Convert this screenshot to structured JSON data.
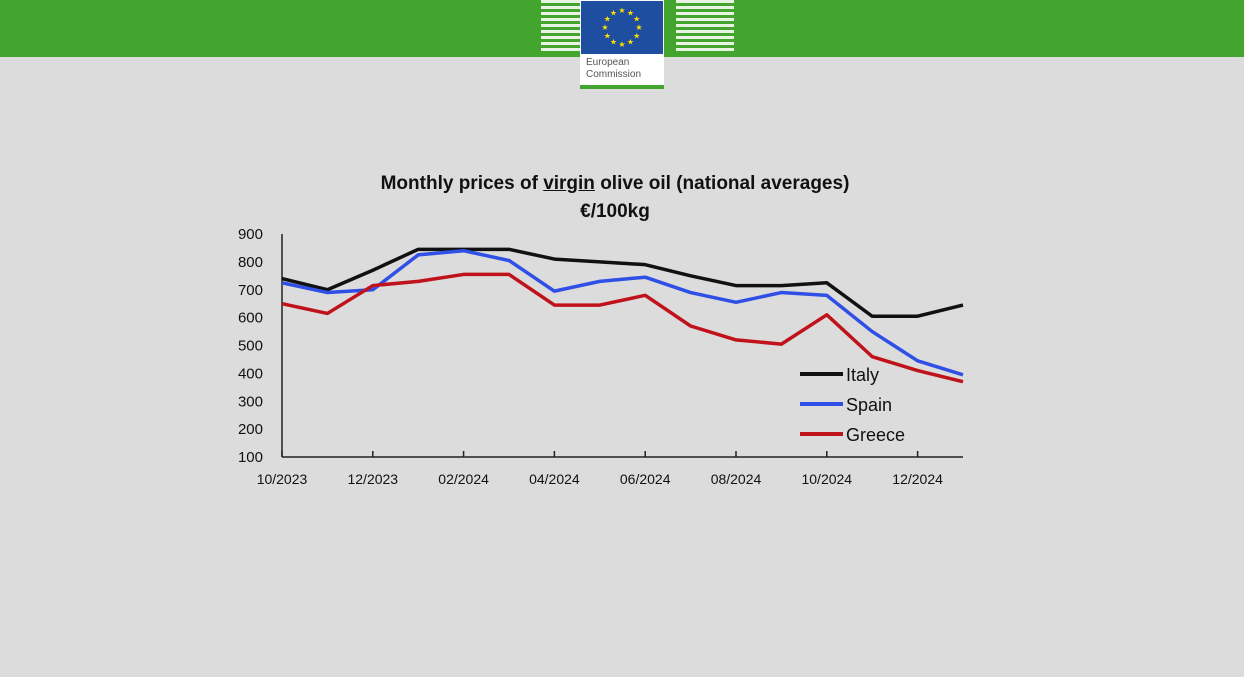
{
  "header": {
    "logo_text": [
      "European",
      "Commission"
    ]
  },
  "chart_data": {
    "type": "line",
    "title_parts": [
      "Monthly prices of ",
      "virgin",
      " olive oil (national averages)"
    ],
    "subtitle": "€/100kg",
    "xlabel": "",
    "ylabel": "",
    "ylim": [
      100,
      900
    ],
    "yticks": [
      100,
      200,
      300,
      400,
      500,
      600,
      700,
      800,
      900
    ],
    "x": [
      "10/2023",
      "11/2023",
      "12/2023",
      "01/2024",
      "02/2024",
      "03/2024",
      "04/2024",
      "05/2024",
      "06/2024",
      "07/2024",
      "08/2024",
      "09/2024",
      "10/2024",
      "11/2024",
      "12/2024",
      "01/2025"
    ],
    "xtick_labels": [
      "10/2023",
      "12/2023",
      "02/2024",
      "04/2024",
      "06/2024",
      "08/2024",
      "10/2024",
      "12/2024"
    ],
    "legend_position": "bottom-right",
    "series": [
      {
        "name": "Italy",
        "color": "#111111",
        "values": [
          740,
          700,
          770,
          845,
          845,
          845,
          810,
          800,
          790,
          750,
          715,
          715,
          725,
          605,
          605,
          645
        ]
      },
      {
        "name": "Spain",
        "color": "#2f4fe6",
        "values": [
          725,
          690,
          700,
          825,
          840,
          805,
          695,
          730,
          745,
          690,
          655,
          690,
          680,
          550,
          445,
          395
        ]
      },
      {
        "name": "Greece",
        "color": "#c0121a",
        "values": [
          650,
          615,
          715,
          730,
          755,
          755,
          645,
          645,
          680,
          570,
          520,
          505,
          610,
          460,
          410,
          370
        ]
      }
    ]
  }
}
